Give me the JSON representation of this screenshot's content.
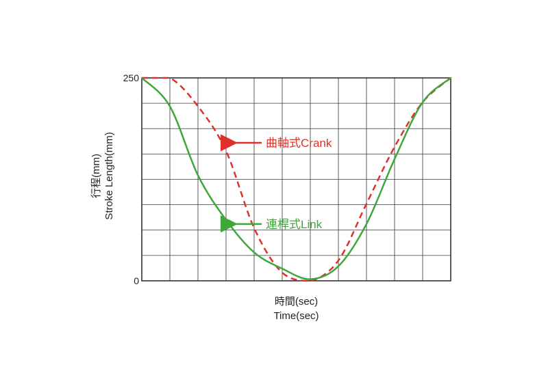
{
  "chart_data": {
    "type": "line",
    "ylim": [
      0,
      250
    ],
    "xlim": [
      0,
      11
    ],
    "yticks": [
      "250",
      "0"
    ],
    "ylabel_cn": "行程(mm)",
    "ylabel_en": "Stroke Length(mm)",
    "xlabel_cn": "時間(sec)",
    "xlabel_en": "Time(sec)",
    "grid": true,
    "x_divisions": 11,
    "y_divisions": 8,
    "series": [
      {
        "name": "曲軸式Crank",
        "color": "#e0302c",
        "style": "dashed",
        "x": [
          0,
          1,
          2,
          3,
          4,
          5,
          6,
          7,
          8,
          9,
          10,
          11
        ],
        "y": [
          250,
          250,
          215,
          160,
          65,
          10,
          0,
          25,
          95,
          165,
          220,
          250
        ]
      },
      {
        "name": "連桿式Link",
        "color": "#3fa63a",
        "style": "solid",
        "x": [
          0,
          1,
          2,
          3,
          4,
          5,
          6,
          7,
          8,
          9,
          10,
          11
        ],
        "y": [
          250,
          215,
          130,
          75,
          35,
          15,
          2,
          18,
          70,
          150,
          220,
          250
        ]
      }
    ],
    "annotations": [
      {
        "text": "曲軸式Crank",
        "color": "#e0302c",
        "points_to_series": 0,
        "at_x": 3.0,
        "at_y": 170
      },
      {
        "text": "連桿式Link",
        "color": "#3fa63a",
        "points_to_series": 1,
        "at_x": 3.0,
        "at_y": 70
      }
    ]
  }
}
